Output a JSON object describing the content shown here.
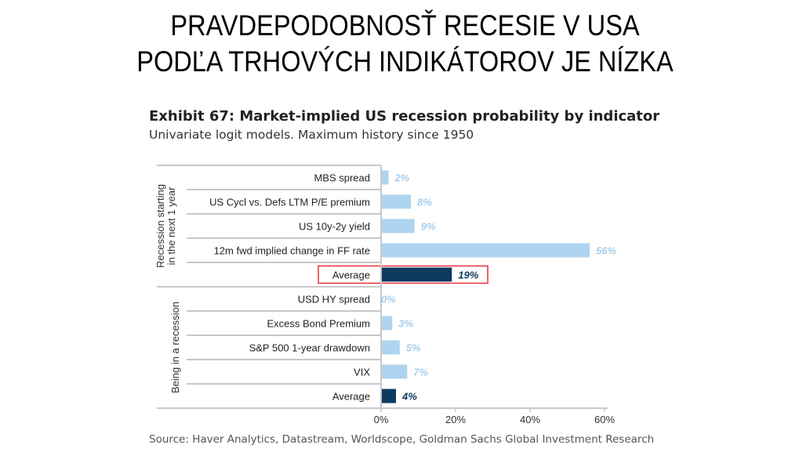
{
  "slide_title_lines": [
    "PRAVDEPODOBNOSŤ RECESIE V USA",
    "PODĽA TRHOVÝCH INDIKÁTOROV JE NÍZKA"
  ],
  "chart_data": {
    "type": "bar",
    "orientation": "horizontal",
    "title": "Exhibit 67: Market-implied US recession probability by indicator",
    "subtitle": "Univariate logit models. Maximum history since 1950",
    "source": "Source: Haver Analytics, Datastream, Worldscope, Goldman Sachs Global Investment Research",
    "xlim": [
      0,
      60
    ],
    "xticks": [
      "0%",
      "20%",
      "40%",
      "60%"
    ],
    "groups": [
      {
        "name": "Recession starting in the next 1 year",
        "label_lines": [
          "Recession starting",
          "in the next 1 year"
        ],
        "categories": [
          "MBS spread",
          "US Cycl vs. Defs LTM  P/E premium",
          "US 10y-2y yield",
          "12m fwd implied change in FF rate",
          "Average"
        ],
        "values": [
          2,
          8,
          9,
          56,
          19
        ],
        "labels": [
          "2%",
          "8%",
          "9%",
          "56%",
          "19%"
        ],
        "highlight_index": 4
      },
      {
        "name": "Being in a recession",
        "label_lines": [
          "Being in a recession"
        ],
        "categories": [
          "USD HY  spread",
          "Excess Bond Premium",
          "S&P 500 1-year drawdown",
          "VIX",
          "Average"
        ],
        "values": [
          0,
          3,
          5,
          7,
          4
        ],
        "labels": [
          "0%",
          "3%",
          "5%",
          "7%",
          "4%"
        ]
      }
    ],
    "colors": {
      "indicator": "#aed4ef",
      "average": "#0e3a5f",
      "highlight_box": "#e8303a",
      "indicator_label": "#a9cfec"
    }
  }
}
